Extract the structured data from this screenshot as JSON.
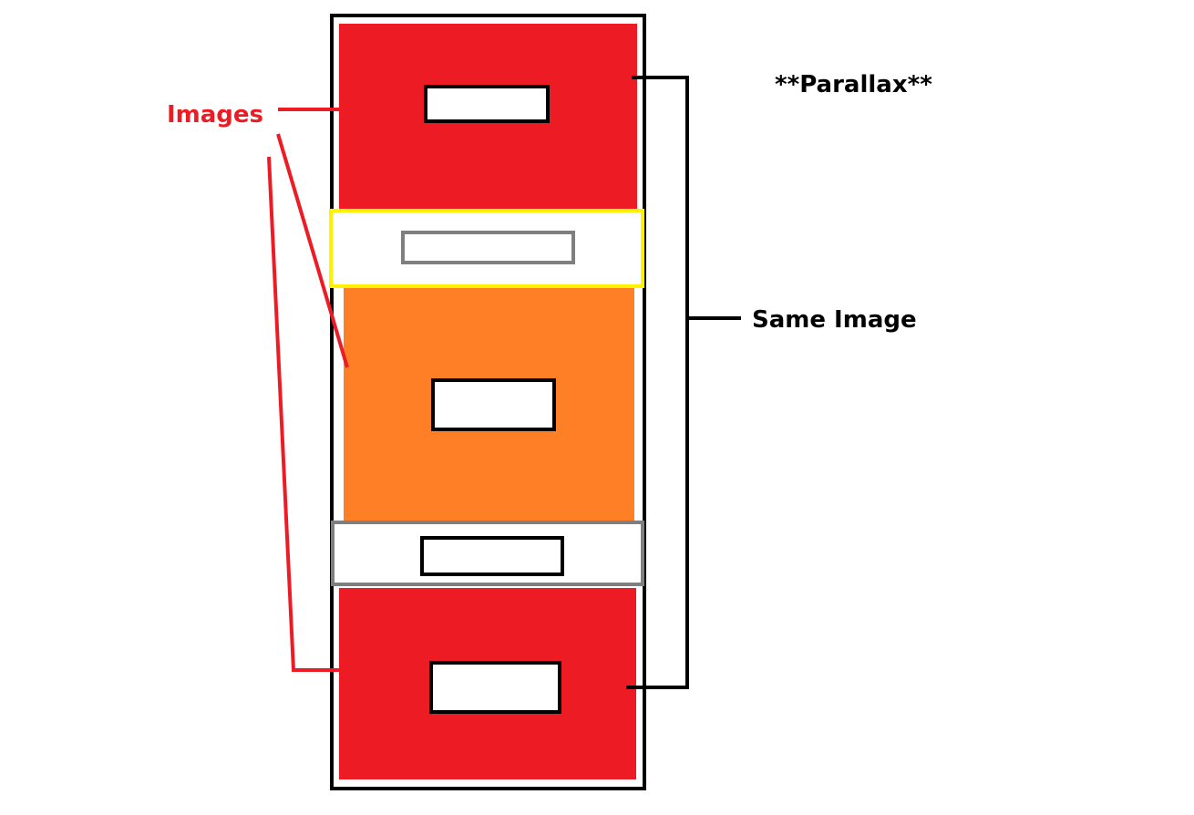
{
  "labels": {
    "images": "Images",
    "parallax": "**Parallax**",
    "same_image": "Same Image"
  },
  "colors": {
    "image_red": "#ED1C24",
    "image_orange": "#FF7F27",
    "band_yellow_border": "#FFF200",
    "band_gray_border": "#7F7F7F",
    "label_red": "#ED1C24",
    "ink": "#000000",
    "background": "#FFFFFF"
  }
}
